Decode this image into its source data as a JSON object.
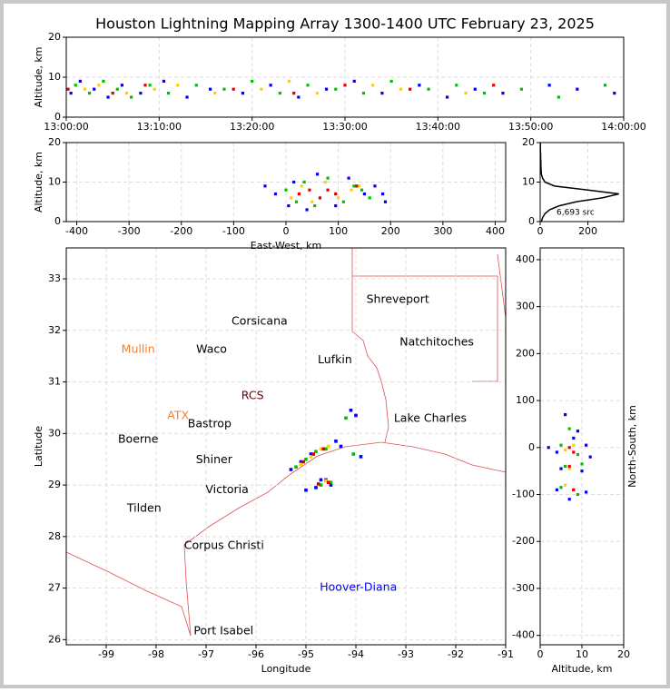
{
  "chart_data": [
    {
      "type": "scatter",
      "title": "Houston Lightning Mapping Array 1300-1400 UTC February 23, 2025",
      "ylabel": "Altitude, km",
      "xlim": [
        0,
        60
      ],
      "xticks": [
        {
          "value": 0,
          "label": "13:00:00"
        },
        {
          "value": 10,
          "label": "13:10:00"
        },
        {
          "value": 20,
          "label": "13:20:00"
        },
        {
          "value": 30,
          "label": "13:30:00"
        },
        {
          "value": 40,
          "label": "13:40:00"
        },
        {
          "value": 50,
          "label": "13:50:00"
        },
        {
          "value": 60,
          "label": "14:00:00"
        }
      ],
      "ylim": [
        0,
        20
      ],
      "yticks": [
        0,
        10,
        20
      ],
      "grid": true,
      "series": [
        {
          "color": "#0000ff",
          "x": [
            0.5,
            1.5,
            3,
            4.5,
            6,
            8,
            10.5,
            13,
            15.5,
            19,
            22,
            25,
            28,
            31,
            34,
            38,
            41,
            44,
            47,
            52,
            55,
            59
          ],
          "y": [
            6,
            9,
            7,
            5,
            8,
            6,
            9,
            5,
            7,
            6,
            8,
            5,
            7,
            9,
            6,
            8,
            5,
            7,
            6,
            8,
            7,
            6
          ]
        },
        {
          "color": "#00c000",
          "x": [
            1,
            2.5,
            4,
            5.5,
            7,
            9,
            11,
            14,
            17,
            20,
            23,
            26,
            29,
            32,
            35,
            39,
            42,
            45,
            49,
            53,
            58
          ],
          "y": [
            8,
            6,
            9,
            7,
            5,
            8,
            6,
            8,
            7,
            9,
            6,
            8,
            7,
            6,
            9,
            7,
            8,
            6,
            7,
            5,
            8
          ]
        },
        {
          "color": "#ffd000",
          "x": [
            2,
            3.5,
            6.5,
            9.5,
            12,
            16,
            21,
            24,
            27,
            33,
            36,
            43
          ],
          "y": [
            7,
            8,
            6,
            7,
            8,
            6,
            7,
            9,
            6,
            8,
            7,
            6
          ]
        },
        {
          "color": "#e00000",
          "x": [
            0.2,
            5,
            8.5,
            18,
            24.5,
            30,
            37,
            46
          ],
          "y": [
            7,
            6,
            8,
            7,
            6,
            8,
            7,
            8
          ]
        }
      ]
    },
    {
      "type": "scatter",
      "xlabel": "East-West, km",
      "ylabel": "Altitude, km",
      "xlim": [
        -420,
        420
      ],
      "xticks": [
        -400,
        -300,
        -200,
        -100,
        0,
        100,
        200,
        300,
        400
      ],
      "ylim": [
        0,
        20
      ],
      "yticks": [
        0,
        10,
        20
      ],
      "grid": true,
      "series": [
        {
          "color": "#0000ff",
          "x": [
            -20,
            5,
            15,
            40,
            60,
            95,
            120,
            150,
            170,
            185,
            -40,
            190
          ],
          "y": [
            7,
            4,
            10,
            3,
            12,
            4,
            11,
            7,
            9,
            7,
            9,
            5
          ]
        },
        {
          "color": "#00c000",
          "x": [
            0,
            20,
            35,
            55,
            80,
            110,
            130,
            145,
            160
          ],
          "y": [
            8,
            5,
            10,
            4,
            11,
            5,
            9,
            8,
            6
          ]
        },
        {
          "color": "#ffd000",
          "x": [
            10,
            30,
            50,
            75,
            100,
            125,
            140
          ],
          "y": [
            6,
            9,
            5,
            10,
            6,
            8,
            9
          ]
        },
        {
          "color": "#e00000",
          "x": [
            25,
            45,
            65,
            80,
            95,
            135
          ],
          "y": [
            7,
            8,
            6,
            8,
            7,
            9
          ]
        }
      ]
    },
    {
      "type": "line",
      "annotation": "6,693 src",
      "color": "#000000",
      "xlim": [
        0,
        350
      ],
      "xticks": [
        0,
        200
      ],
      "ylim": [
        0,
        20
      ],
      "yticks": [
        0,
        10,
        20
      ],
      "grid": true,
      "x": [
        5,
        10,
        20,
        40,
        80,
        150,
        260,
        330,
        200,
        60,
        20,
        10,
        5,
        4,
        3,
        3,
        2,
        2,
        1,
        1,
        1
      ],
      "y": [
        0,
        1,
        2,
        3,
        4,
        5,
        6,
        7,
        8,
        9,
        10,
        11,
        12,
        13,
        14,
        15,
        16,
        17,
        18,
        19,
        20
      ]
    },
    {
      "type": "scatter",
      "xlabel": "Longitude",
      "ylabel": "Latitude",
      "xlim": [
        -99.8,
        -91
      ],
      "xticks": [
        -99,
        -98,
        -97,
        -96,
        -95,
        -94,
        -93,
        -92,
        -91
      ],
      "ylim": [
        25.9,
        33.6
      ],
      "yticks": [
        26,
        27,
        28,
        29,
        30,
        31,
        32,
        33
      ],
      "grid": true,
      "labels": [
        {
          "text": "Shreveport",
          "lon": -93.16,
          "lat": 32.6,
          "color": "#000000"
        },
        {
          "text": "Corsicana",
          "lon": -95.93,
          "lat": 32.17,
          "color": "#000000"
        },
        {
          "text": "Natchitoches",
          "lon": -92.38,
          "lat": 31.77,
          "color": "#000000"
        },
        {
          "text": "Mullin",
          "lon": -98.36,
          "lat": 31.63,
          "color": "#f08030"
        },
        {
          "text": "Waco",
          "lon": -96.89,
          "lat": 31.63,
          "color": "#000000"
        },
        {
          "text": "Lufkin",
          "lon": -94.42,
          "lat": 31.42,
          "color": "#000000"
        },
        {
          "text": "RCS",
          "lon": -96.07,
          "lat": 30.73,
          "color": "#700000"
        },
        {
          "text": "ATX",
          "lon": -97.56,
          "lat": 30.34,
          "color": "#f08030"
        },
        {
          "text": "Bastrop",
          "lon": -96.93,
          "lat": 30.18,
          "color": "#000000"
        },
        {
          "text": "Lake Charles",
          "lon": -92.51,
          "lat": 30.29,
          "color": "#000000"
        },
        {
          "text": "Boerne",
          "lon": -98.36,
          "lat": 29.88,
          "color": "#000000"
        },
        {
          "text": "Shiner",
          "lon": -96.84,
          "lat": 29.49,
          "color": "#000000"
        },
        {
          "text": "Victoria",
          "lon": -96.58,
          "lat": 28.9,
          "color": "#000000"
        },
        {
          "text": "Tilden",
          "lon": -98.24,
          "lat": 28.54,
          "color": "#000000"
        },
        {
          "text": "Corpus Christi",
          "lon": -96.64,
          "lat": 27.82,
          "color": "#000000"
        },
        {
          "text": "Hoover-Diana",
          "lon": -93.95,
          "lat": 27.01,
          "color": "#0000ff"
        },
        {
          "text": "Port Isabel",
          "lon": -96.65,
          "lat": 26.16,
          "color": "#000000"
        }
      ],
      "series": [
        {
          "color": "#0000ff",
          "x": [
            -95.3,
            -95.1,
            -94.9,
            -94.7,
            -94.5,
            -94.3,
            -94.8,
            -94.6,
            -94.1,
            -94.0,
            -93.9,
            -95.0,
            -94.4
          ],
          "y": [
            29.3,
            29.45,
            29.6,
            29.1,
            29.0,
            29.75,
            28.95,
            29.1,
            30.45,
            30.35,
            29.55,
            28.9,
            29.85
          ]
        },
        {
          "color": "#00c000",
          "x": [
            -95.2,
            -95.0,
            -94.8,
            -94.6,
            -94.5,
            -94.7,
            -94.2,
            -94.05
          ],
          "y": [
            29.35,
            29.5,
            29.65,
            29.7,
            29.05,
            29.0,
            30.3,
            29.6
          ]
        },
        {
          "color": "#ffd000",
          "x": [
            -95.1,
            -94.9,
            -94.7,
            -94.55,
            -94.6
          ],
          "y": [
            29.4,
            29.55,
            29.7,
            29.75,
            29.08
          ]
        },
        {
          "color": "#e00000",
          "x": [
            -95.05,
            -94.85,
            -94.65,
            -94.75,
            -94.55
          ],
          "y": [
            29.45,
            29.6,
            29.7,
            29.02,
            29.05
          ]
        }
      ]
    },
    {
      "type": "scatter",
      "xlabel": "Altitude, km",
      "ylabel": "North-South, km",
      "xlim": [
        0,
        20
      ],
      "xticks": [
        0,
        10,
        20
      ],
      "ylim": [
        -420,
        425
      ],
      "yticks": [
        -400,
        -300,
        -200,
        -100,
        0,
        100,
        200,
        300,
        400
      ],
      "grid": true,
      "series": [
        {
          "color": "#0000ff",
          "x": [
            2,
            4,
            11,
            12,
            5,
            10,
            4,
            11,
            6,
            9,
            7,
            8
          ],
          "y": [
            0,
            -10,
            5,
            -20,
            -45,
            -50,
            -90,
            -95,
            70,
            35,
            -110,
            20
          ]
        },
        {
          "color": "#00c000",
          "x": [
            5,
            9,
            6,
            10,
            5,
            9,
            7
          ],
          "y": [
            5,
            -15,
            -40,
            -35,
            -85,
            -100,
            40
          ]
        },
        {
          "color": "#ffd000",
          "x": [
            6,
            8,
            7,
            8,
            6
          ],
          "y": [
            -5,
            5,
            -45,
            -90,
            -80
          ]
        },
        {
          "color": "#e00000",
          "x": [
            7,
            8,
            7,
            8
          ],
          "y": [
            0,
            -10,
            -40,
            -90
          ]
        }
      ]
    }
  ]
}
